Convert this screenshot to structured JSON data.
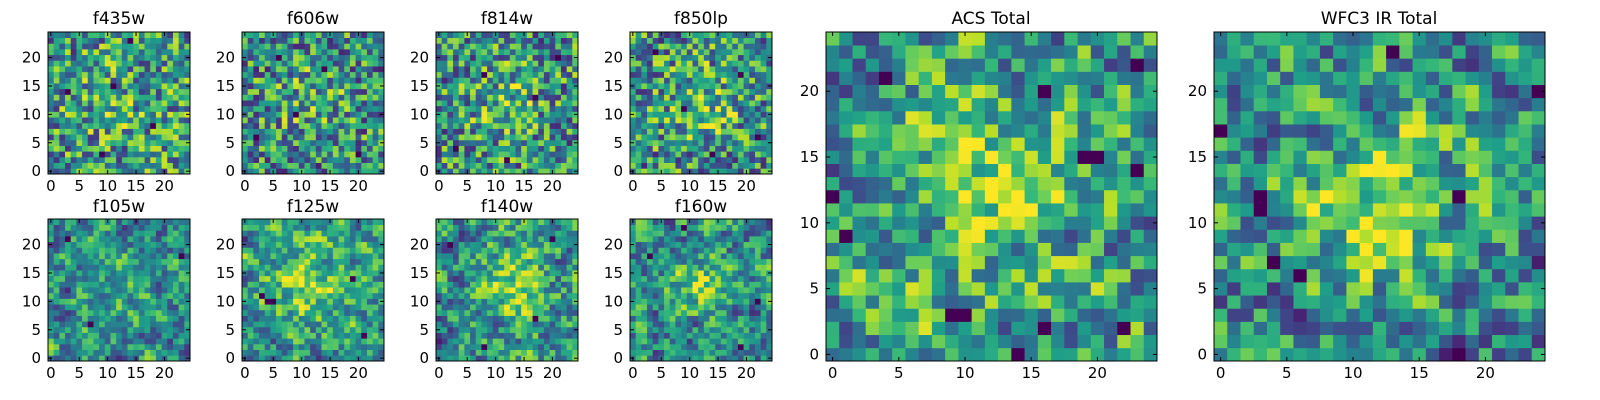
{
  "colormap": "viridis",
  "colors": {
    "viridis_stops": [
      "#440154",
      "#482878",
      "#3e4989",
      "#31688e",
      "#26828e",
      "#1f9e89",
      "#35b779",
      "#6ece58",
      "#b5de2b",
      "#fde725"
    ],
    "axis": "#000000",
    "background": "#ffffff"
  },
  "chart_data": [
    {
      "id": "f435w",
      "type": "heatmap",
      "title": "f435w",
      "grid_size": 25,
      "xlim": [
        -0.5,
        24.5
      ],
      "ylim": [
        -0.5,
        24.5
      ],
      "xticks": [
        0,
        5,
        10,
        15,
        20
      ],
      "yticks": [
        0,
        5,
        10,
        15,
        20
      ],
      "value_range": [
        0,
        1
      ],
      "seed": 11,
      "smooth": 0,
      "bias": 0.55,
      "blob": [
        12,
        12,
        0.1,
        6
      ],
      "dark_spots": [
        [
          11,
          15
        ],
        [
          3,
          14
        ],
        [
          9,
          3
        ],
        [
          18,
          8
        ],
        [
          14,
          23
        ]
      ],
      "bright_spots": []
    },
    {
      "id": "f606w",
      "type": "heatmap",
      "title": "f606w",
      "grid_size": 25,
      "xlim": [
        -0.5,
        24.5
      ],
      "ylim": [
        -0.5,
        24.5
      ],
      "xticks": [
        0,
        5,
        10,
        15,
        20
      ],
      "yticks": [
        0,
        5,
        10,
        15,
        20
      ],
      "value_range": [
        0,
        1
      ],
      "seed": 23,
      "smooth": 0,
      "bias": 0.45,
      "blob": [
        12,
        12,
        0.15,
        5
      ],
      "dark_spots": [
        [
          2,
          6
        ],
        [
          9,
          10
        ],
        [
          14,
          18
        ],
        [
          20,
          3
        ],
        [
          6,
          20
        ]
      ],
      "bright_spots": []
    },
    {
      "id": "f814w",
      "type": "heatmap",
      "title": "f814w",
      "grid_size": 25,
      "xlim": [
        -0.5,
        24.5
      ],
      "ylim": [
        -0.5,
        24.5
      ],
      "xticks": [
        0,
        5,
        10,
        15,
        20
      ],
      "yticks": [
        0,
        5,
        10,
        15,
        20
      ],
      "value_range": [
        0,
        1
      ],
      "seed": 37,
      "smooth": 0,
      "bias": 0.5,
      "blob": [
        12,
        12,
        0.15,
        5
      ],
      "dark_spots": [
        [
          3,
          4
        ],
        [
          17,
          13
        ],
        [
          21,
          20
        ],
        [
          8,
          17
        ],
        [
          12,
          2
        ]
      ],
      "bright_spots": []
    },
    {
      "id": "f850lp",
      "type": "heatmap",
      "title": "f850lp",
      "grid_size": 25,
      "xlim": [
        -0.5,
        24.5
      ],
      "ylim": [
        -0.5,
        24.5
      ],
      "xticks": [
        0,
        5,
        10,
        15,
        20
      ],
      "yticks": [
        0,
        5,
        10,
        15,
        20
      ],
      "value_range": [
        0,
        1
      ],
      "seed": 51,
      "smooth": 0,
      "bias": 0.5,
      "blob": [
        12,
        12,
        0.2,
        5
      ],
      "dark_spots": [
        [
          4,
          21
        ],
        [
          14,
          3
        ],
        [
          19,
          17
        ],
        [
          9,
          11
        ],
        [
          22,
          6
        ]
      ],
      "bright_spots": []
    },
    {
      "id": "f105w",
      "type": "heatmap",
      "title": "f105w",
      "grid_size": 25,
      "xlim": [
        -0.5,
        24.5
      ],
      "ylim": [
        -0.5,
        24.5
      ],
      "xticks": [
        0,
        5,
        10,
        15,
        20
      ],
      "yticks": [
        0,
        5,
        10,
        15,
        20
      ],
      "value_range": [
        0,
        1
      ],
      "seed": 63,
      "smooth": 1,
      "bias": 0.45,
      "blob": [
        12,
        12,
        0.2,
        5
      ],
      "dark_spots": [
        [
          3,
          21
        ],
        [
          23,
          18
        ],
        [
          7,
          6
        ]
      ],
      "bright_spots": []
    },
    {
      "id": "f125w",
      "type": "heatmap",
      "title": "f125w",
      "grid_size": 25,
      "xlim": [
        -0.5,
        24.5
      ],
      "ylim": [
        -0.5,
        24.5
      ],
      "xticks": [
        0,
        5,
        10,
        15,
        20
      ],
      "yticks": [
        0,
        5,
        10,
        15,
        20
      ],
      "value_range": [
        0,
        1
      ],
      "seed": 79,
      "smooth": 1,
      "bias": 0.5,
      "blob": [
        11,
        13,
        0.3,
        5
      ],
      "dark_spots": [
        [
          4,
          10
        ],
        [
          5,
          10
        ],
        [
          3,
          11
        ],
        [
          19,
          14
        ],
        [
          21,
          4
        ]
      ],
      "bright_spots": []
    },
    {
      "id": "f140w",
      "type": "heatmap",
      "title": "f140w",
      "grid_size": 25,
      "xlim": [
        -0.5,
        24.5
      ],
      "ylim": [
        -0.5,
        24.5
      ],
      "xticks": [
        0,
        5,
        10,
        15,
        20
      ],
      "yticks": [
        0,
        5,
        10,
        15,
        20
      ],
      "value_range": [
        0,
        1
      ],
      "seed": 91,
      "smooth": 1,
      "bias": 0.45,
      "blob": [
        13,
        12,
        0.35,
        4
      ],
      "dark_spots": [
        [
          2,
          20
        ],
        [
          20,
          21
        ],
        [
          8,
          2
        ],
        [
          17,
          7
        ]
      ],
      "bright_spots": []
    },
    {
      "id": "f160w",
      "type": "heatmap",
      "title": "f160w",
      "grid_size": 25,
      "xlim": [
        -0.5,
        24.5
      ],
      "ylim": [
        -0.5,
        24.5
      ],
      "xticks": [
        0,
        5,
        10,
        15,
        20
      ],
      "yticks": [
        0,
        5,
        10,
        15,
        20
      ],
      "value_range": [
        0,
        1
      ],
      "seed": 103,
      "smooth": 1,
      "bias": 0.4,
      "blob": [
        12,
        12,
        0.35,
        4
      ],
      "dark_spots": [
        [
          3,
          18
        ],
        [
          19,
          2
        ],
        [
          22,
          10
        ],
        [
          9,
          23
        ]
      ],
      "bright_spots": []
    },
    {
      "id": "acs-total",
      "type": "heatmap",
      "title": "ACS Total",
      "grid_size": 25,
      "xlim": [
        -0.5,
        24.5
      ],
      "ylim": [
        -0.5,
        24.5
      ],
      "xticks": [
        0,
        5,
        10,
        15,
        20
      ],
      "yticks": [
        0,
        5,
        10,
        15,
        20
      ],
      "value_range": [
        0,
        1
      ],
      "seed": 127,
      "smooth": 1,
      "bias": 0.6,
      "blob": [
        12,
        14,
        0.25,
        5
      ],
      "dark_spots": [
        [
          4,
          21
        ],
        [
          23,
          22
        ],
        [
          19,
          15
        ],
        [
          20,
          15
        ],
        [
          23,
          14
        ],
        [
          0,
          12
        ],
        [
          1,
          9
        ],
        [
          14,
          0
        ],
        [
          9,
          3
        ],
        [
          10,
          3
        ],
        [
          16,
          2
        ],
        [
          22,
          2
        ],
        [
          16,
          20
        ]
      ],
      "bright_spots": []
    },
    {
      "id": "wfc3-ir-total",
      "type": "heatmap",
      "title": "WFC3 IR Total",
      "grid_size": 25,
      "xlim": [
        -0.5,
        24.5
      ],
      "ylim": [
        -0.5,
        24.5
      ],
      "xticks": [
        0,
        5,
        10,
        15,
        20
      ],
      "yticks": [
        0,
        5,
        10,
        15,
        20
      ],
      "value_range": [
        0,
        1
      ],
      "seed": 139,
      "smooth": 1,
      "bias": 0.4,
      "blob": [
        12,
        12,
        0.4,
        4
      ],
      "dark_spots": [
        [
          0,
          17
        ],
        [
          24,
          20
        ],
        [
          3,
          11
        ],
        [
          3,
          12
        ],
        [
          18,
          12
        ],
        [
          4,
          7
        ],
        [
          6,
          6
        ],
        [
          18,
          0
        ],
        [
          13,
          23
        ]
      ],
      "bright_spots": []
    }
  ]
}
